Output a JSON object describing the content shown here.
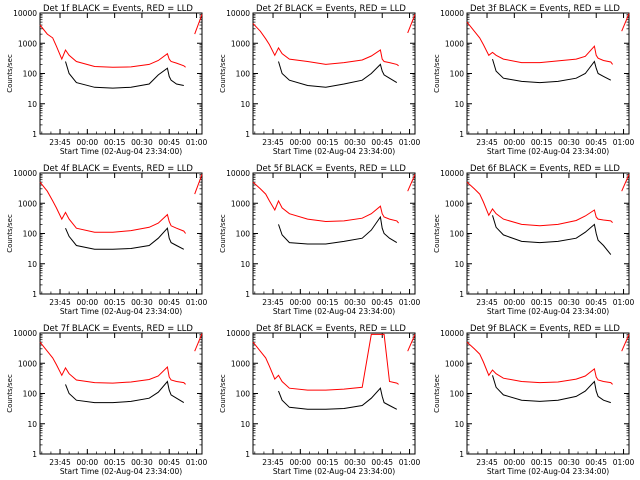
{
  "colors": {
    "events": "#000000",
    "lld": "#ff0000",
    "axes": "#000000",
    "background": "#ffffff"
  },
  "chart_data": [
    {
      "type": "line",
      "title": "Det 1f BLACK = Events, RED = LLD",
      "xlabel": "Start Time (02-Aug-04 23:34:00)",
      "ylabel": "Counts/sec",
      "xticks": [
        "23:45",
        "00:00",
        "00:15",
        "00:30",
        "00:45",
        "01:00"
      ],
      "yticks": [
        "1",
        "10",
        "100",
        "1000",
        "10000"
      ],
      "ylim": [
        1,
        10000
      ],
      "yscale": "log",
      "x_minutes_from_start": [
        0,
        4,
        7,
        9,
        12,
        14,
        16,
        20,
        30,
        40,
        50,
        60,
        65,
        70,
        71,
        72,
        75,
        79,
        80,
        83,
        85,
        89
      ],
      "series": [
        {
          "name": "Events",
          "values": [
            null,
            null,
            null,
            null,
            null,
            250,
            100,
            50,
            35,
            33,
            35,
            45,
            90,
            150,
            80,
            60,
            45,
            40,
            null,
            null,
            null,
            null
          ]
        },
        {
          "name": "LLD",
          "values": [
            4000,
            2000,
            1500,
            800,
            300,
            600,
            400,
            250,
            170,
            160,
            165,
            200,
            270,
            450,
            300,
            250,
            220,
            180,
            160,
            null,
            2000,
            9000
          ]
        }
      ]
    },
    {
      "type": "line",
      "title": "Det 2f BLACK = Events, RED = LLD",
      "xlabel": "Start Time (02-Aug-04 23:34:00)",
      "ylabel": "Counts/sec",
      "xticks": [
        "23:45",
        "00:00",
        "00:15",
        "00:30",
        "00:45",
        "01:00"
      ],
      "yticks": [
        "1",
        "10",
        "100",
        "1000",
        "10000"
      ],
      "ylim": [
        1,
        10000
      ],
      "yscale": "log",
      "x_minutes_from_start": [
        0,
        4,
        7,
        9,
        12,
        14,
        16,
        20,
        30,
        40,
        50,
        60,
        65,
        70,
        71,
        72,
        75,
        79,
        80,
        83,
        85,
        89
      ],
      "series": [
        {
          "name": "Events",
          "values": [
            null,
            null,
            null,
            null,
            null,
            250,
            100,
            60,
            40,
            35,
            45,
            60,
            100,
            200,
            120,
            90,
            70,
            50,
            null,
            null,
            null,
            null
          ]
        },
        {
          "name": "LLD",
          "values": [
            4500,
            2500,
            1400,
            900,
            400,
            700,
            450,
            300,
            250,
            200,
            230,
            280,
            380,
            600,
            300,
            250,
            230,
            200,
            180,
            null,
            2200,
            9000
          ]
        }
      ]
    },
    {
      "type": "line",
      "title": "Det 3f BLACK = Events, RED = LLD",
      "xlabel": "Start Time (02-Aug-04 23:34:00)",
      "ylabel": "Counts/sec",
      "xticks": [
        "23:45",
        "00:00",
        "00:15",
        "00:30",
        "00:45",
        "01:00"
      ],
      "yticks": [
        "1",
        "10",
        "100",
        "1000",
        "10000"
      ],
      "ylim": [
        1,
        10000
      ],
      "yscale": "log",
      "x_minutes_from_start": [
        0,
        4,
        7,
        9,
        12,
        14,
        16,
        20,
        30,
        40,
        50,
        60,
        65,
        70,
        71,
        72,
        75,
        79,
        80,
        83,
        85,
        89
      ],
      "series": [
        {
          "name": "Events",
          "values": [
            null,
            null,
            null,
            null,
            null,
            300,
            120,
            70,
            55,
            50,
            55,
            70,
            100,
            250,
            150,
            100,
            80,
            60,
            null,
            null,
            null,
            null
          ]
        },
        {
          "name": "LLD",
          "values": [
            5000,
            2500,
            1500,
            900,
            400,
            500,
            400,
            300,
            230,
            230,
            260,
            300,
            370,
            800,
            400,
            320,
            270,
            240,
            200,
            null,
            2500,
            9500
          ]
        }
      ]
    },
    {
      "type": "line",
      "title": "Det 4f BLACK = Events, RED = LLD",
      "xlabel": "Start Time (02-Aug-04 23:34:00)",
      "ylabel": "Counts/sec",
      "xticks": [
        "23:45",
        "00:00",
        "00:15",
        "00:30",
        "00:45",
        "01:00"
      ],
      "yticks": [
        "1",
        "10",
        "100",
        "1000",
        "10000"
      ],
      "ylim": [
        1,
        10000
      ],
      "yscale": "log",
      "x_minutes_from_start": [
        0,
        4,
        7,
        9,
        12,
        14,
        16,
        20,
        30,
        40,
        50,
        60,
        65,
        70,
        71,
        72,
        75,
        79,
        80,
        83,
        85,
        89
      ],
      "series": [
        {
          "name": "Events",
          "values": [
            null,
            null,
            null,
            null,
            null,
            150,
            80,
            40,
            30,
            30,
            32,
            40,
            70,
            150,
            70,
            50,
            40,
            30,
            null,
            null,
            null,
            null
          ]
        },
        {
          "name": "LLD",
          "values": [
            5000,
            2500,
            1200,
            700,
            300,
            500,
            300,
            150,
            110,
            110,
            125,
            160,
            220,
            420,
            250,
            180,
            150,
            120,
            100,
            null,
            2000,
            9000
          ]
        }
      ]
    },
    {
      "type": "line",
      "title": "Det 5f BLACK = Events, RED = LLD",
      "xlabel": "Start Time (02-Aug-04 23:34:00)",
      "ylabel": "Counts/sec",
      "xticks": [
        "23:45",
        "00:00",
        "00:15",
        "00:30",
        "00:45",
        "01:00"
      ],
      "yticks": [
        "1",
        "10",
        "100",
        "1000",
        "10000"
      ],
      "ylim": [
        1,
        10000
      ],
      "yscale": "log",
      "x_minutes_from_start": [
        0,
        4,
        7,
        9,
        12,
        14,
        16,
        20,
        30,
        40,
        50,
        60,
        65,
        70,
        71,
        72,
        75,
        79,
        80,
        83,
        85,
        89
      ],
      "series": [
        {
          "name": "Events",
          "values": [
            null,
            null,
            null,
            null,
            null,
            200,
            90,
            50,
            45,
            45,
            55,
            70,
            130,
            350,
            150,
            100,
            70,
            50,
            null,
            null,
            null,
            null
          ]
        },
        {
          "name": "LLD",
          "values": [
            5000,
            3000,
            2000,
            1200,
            600,
            1200,
            700,
            450,
            300,
            250,
            260,
            320,
            450,
            800,
            450,
            350,
            300,
            260,
            220,
            null,
            2500,
            9000
          ]
        }
      ]
    },
    {
      "type": "line",
      "title": "Det 6f BLACK = Events, RED = LLD",
      "xlabel": "Start Time (02-Aug-04 23:34:00)",
      "ylabel": "Counts/sec",
      "xticks": [
        "23:45",
        "00:00",
        "00:15",
        "00:30",
        "00:45",
        "01:00"
      ],
      "yticks": [
        "1",
        "10",
        "100",
        "1000",
        "10000"
      ],
      "ylim": [
        1,
        10000
      ],
      "yscale": "log",
      "x_minutes_from_start": [
        0,
        4,
        7,
        9,
        12,
        14,
        16,
        20,
        30,
        40,
        50,
        60,
        65,
        70,
        71,
        72,
        75,
        79,
        80,
        83,
        85,
        89
      ],
      "series": [
        {
          "name": "Events",
          "values": [
            null,
            null,
            null,
            null,
            null,
            400,
            160,
            90,
            55,
            50,
            55,
            70,
            110,
            200,
            100,
            60,
            40,
            20,
            null,
            null,
            null,
            null
          ]
        },
        {
          "name": "LLD",
          "values": [
            5000,
            3000,
            2000,
            1100,
            400,
            650,
            450,
            300,
            200,
            180,
            200,
            270,
            380,
            600,
            350,
            300,
            280,
            260,
            230,
            null,
            2500,
            9000
          ]
        }
      ]
    },
    {
      "type": "line",
      "title": "Det 7f BLACK = Events, RED = LLD",
      "xlabel": "Start Time (02-Aug-04 23:34:00)",
      "ylabel": "Counts/sec",
      "xticks": [
        "23:45",
        "00:00",
        "00:15",
        "00:30",
        "00:45",
        "01:00"
      ],
      "yticks": [
        "1",
        "10",
        "100",
        "1000",
        "10000"
      ],
      "ylim": [
        1,
        10000
      ],
      "yscale": "log",
      "x_minutes_from_start": [
        0,
        4,
        7,
        9,
        12,
        14,
        16,
        20,
        30,
        40,
        50,
        60,
        65,
        70,
        71,
        72,
        75,
        79,
        80,
        83,
        85,
        89
      ],
      "series": [
        {
          "name": "Events",
          "values": [
            null,
            null,
            null,
            null,
            null,
            200,
            100,
            60,
            50,
            50,
            55,
            70,
            110,
            250,
            130,
            90,
            70,
            50,
            null,
            null,
            null,
            null
          ]
        },
        {
          "name": "LLD",
          "values": [
            5000,
            2500,
            1500,
            900,
            400,
            700,
            450,
            280,
            230,
            220,
            240,
            290,
            380,
            750,
            350,
            280,
            250,
            230,
            200,
            null,
            2500,
            9500
          ]
        }
      ]
    },
    {
      "type": "line",
      "title": "Det 8f BLACK = Events, RED = LLD",
      "xlabel": "Start Time (02-Aug-04 23:34:00)",
      "ylabel": "Counts/sec",
      "xticks": [
        "23:45",
        "00:00",
        "00:15",
        "00:30",
        "00:45",
        "01:00"
      ],
      "yticks": [
        "1",
        "10",
        "100",
        "1000",
        "10000"
      ],
      "ylim": [
        1,
        10000
      ],
      "yscale": "log",
      "x_minutes_from_start": [
        0,
        4,
        7,
        9,
        12,
        14,
        16,
        20,
        30,
        40,
        50,
        60,
        65,
        70,
        71,
        72,
        75,
        79,
        80,
        83,
        85,
        89
      ],
      "series": [
        {
          "name": "Events",
          "values": [
            null,
            null,
            null,
            null,
            null,
            120,
            60,
            35,
            30,
            30,
            32,
            40,
            70,
            150,
            80,
            50,
            40,
            30,
            null,
            null,
            null,
            null
          ]
        },
        {
          "name": "LLD",
          "values": [
            5000,
            2500,
            1500,
            800,
            300,
            400,
            250,
            150,
            130,
            130,
            140,
            160,
            9000,
            9000,
            9000,
            9000,
            250,
            220,
            200,
            null,
            2500,
            9000
          ]
        }
      ]
    },
    {
      "type": "line",
      "title": "Det 9f BLACK = Events, RED = LLD",
      "xlabel": "Start Time (02-Aug-04 23:34:00)",
      "ylabel": "Counts/sec",
      "xticks": [
        "23:45",
        "00:00",
        "00:15",
        "00:30",
        "00:45",
        "01:00"
      ],
      "yticks": [
        "1",
        "10",
        "100",
        "1000",
        "10000"
      ],
      "ylim": [
        1,
        10000
      ],
      "yscale": "log",
      "x_minutes_from_start": [
        0,
        4,
        7,
        9,
        12,
        14,
        16,
        20,
        30,
        40,
        50,
        60,
        65,
        70,
        71,
        72,
        75,
        79,
        80,
        83,
        85,
        89
      ],
      "series": [
        {
          "name": "Events",
          "values": [
            null,
            null,
            null,
            null,
            null,
            400,
            160,
            90,
            60,
            55,
            60,
            80,
            120,
            250,
            120,
            80,
            60,
            50,
            null,
            null,
            null,
            null
          ]
        },
        {
          "name": "LLD",
          "values": [
            5000,
            3000,
            2000,
            1100,
            400,
            600,
            450,
            320,
            250,
            230,
            240,
            300,
            380,
            650,
            350,
            280,
            250,
            230,
            200,
            null,
            2500,
            9000
          ]
        }
      ]
    }
  ]
}
